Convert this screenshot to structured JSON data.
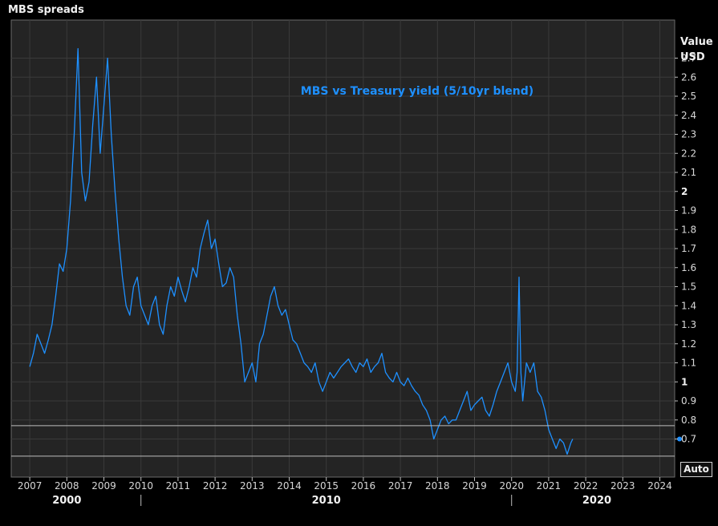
{
  "panel": {
    "title": "MBS  spreads",
    "auto_label": "Auto"
  },
  "chart_data": {
    "type": "line",
    "title": "",
    "legend": {
      "label": "MBS vs Treasury yield (5/10yr blend)",
      "placement": "top-center"
    },
    "y_axis": {
      "label_line1": "Value",
      "label_line2": "USD",
      "side": "right",
      "ylim": [
        0.5,
        2.9
      ],
      "ticks": [
        0.7,
        0.8,
        0.9,
        1,
        1.1,
        1.2,
        1.3,
        1.4,
        1.5,
        1.6,
        1.7,
        1.8,
        1.9,
        2,
        2.1,
        2.2,
        2.3,
        2.4,
        2.5,
        2.6,
        2.7
      ],
      "tick_labels": [
        "0.7",
        "0.8",
        "0.9",
        "1",
        "1.1",
        "1.2",
        "1.3",
        "1.4",
        "1.5",
        "1.6",
        "1.7",
        "1.8",
        "1.9",
        "2",
        "2.1",
        "2.2",
        "2.3",
        "2.4",
        "2.5",
        "2.6",
        "2.7"
      ],
      "bold_ticks": [
        "1",
        "2"
      ]
    },
    "x_axis": {
      "xlim": [
        2006.5,
        2024.4
      ],
      "ticks": [
        2007,
        2008,
        2009,
        2010,
        2011,
        2012,
        2013,
        2014,
        2015,
        2016,
        2017,
        2018,
        2019,
        2020,
        2021,
        2022,
        2023,
        2024
      ],
      "tick_labels": [
        "2007",
        "2008",
        "2009",
        "2010",
        "2011",
        "2012",
        "2013",
        "2014",
        "2015",
        "2016",
        "2017",
        "2018",
        "2019",
        "2020",
        "2021",
        "2022",
        "2023",
        "2024"
      ],
      "decades": [
        {
          "label": "2000",
          "x": 2008.0
        },
        {
          "label": "2010",
          "x": 2015.0
        },
        {
          "label": "2020",
          "x": 2022.3
        }
      ],
      "decade_separators": [
        2010.0,
        2020.0
      ]
    },
    "grid": true,
    "reference_lines": [
      0.77,
      0.61
    ],
    "last_value": 0.7,
    "series": [
      {
        "color": "#1e90ff",
        "x": [
          2007.0,
          2007.1,
          2007.2,
          2007.3,
          2007.4,
          2007.5,
          2007.6,
          2007.7,
          2007.8,
          2007.9,
          2008.0,
          2008.1,
          2008.2,
          2008.3,
          2008.4,
          2008.5,
          2008.6,
          2008.7,
          2008.8,
          2008.9,
          2009.0,
          2009.1,
          2009.2,
          2009.3,
          2009.4,
          2009.5,
          2009.6,
          2009.7,
          2009.8,
          2009.9,
          2010.0,
          2010.1,
          2010.2,
          2010.3,
          2010.4,
          2010.5,
          2010.6,
          2010.7,
          2010.8,
          2010.9,
          2011.0,
          2011.1,
          2011.2,
          2011.3,
          2011.4,
          2011.5,
          2011.6,
          2011.7,
          2011.8,
          2011.9,
          2012.0,
          2012.1,
          2012.2,
          2012.3,
          2012.4,
          2012.5,
          2012.6,
          2012.7,
          2012.8,
          2012.9,
          2013.0,
          2013.1,
          2013.2,
          2013.3,
          2013.4,
          2013.5,
          2013.6,
          2013.7,
          2013.8,
          2013.9,
          2014.0,
          2014.1,
          2014.2,
          2014.3,
          2014.4,
          2014.5,
          2014.6,
          2014.7,
          2014.8,
          2014.9,
          2015.0,
          2015.1,
          2015.2,
          2015.3,
          2015.4,
          2015.5,
          2015.6,
          2015.7,
          2015.8,
          2015.9,
          2016.0,
          2016.1,
          2016.2,
          2016.3,
          2016.4,
          2016.5,
          2016.6,
          2016.7,
          2016.8,
          2016.9,
          2017.0,
          2017.1,
          2017.2,
          2017.3,
          2017.4,
          2017.5,
          2017.6,
          2017.7,
          2017.8,
          2017.9,
          2018.0,
          2018.1,
          2018.2,
          2018.3,
          2018.4,
          2018.5,
          2018.6,
          2018.7,
          2018.8,
          2018.9,
          2019.0,
          2019.1,
          2019.2,
          2019.3,
          2019.4,
          2019.5,
          2019.6,
          2019.7,
          2019.8,
          2019.9,
          2020.0,
          2020.1,
          2020.15,
          2020.2,
          2020.25,
          2020.3,
          2020.4,
          2020.5,
          2020.6,
          2020.7,
          2020.8,
          2020.9,
          2021.0,
          2021.1,
          2021.2,
          2021.3,
          2021.4,
          2021.5,
          2021.6,
          2021.65
        ],
        "y": [
          1.08,
          1.15,
          1.25,
          1.2,
          1.15,
          1.22,
          1.3,
          1.45,
          1.62,
          1.58,
          1.7,
          1.95,
          2.3,
          2.75,
          2.1,
          1.95,
          2.05,
          2.35,
          2.6,
          2.2,
          2.45,
          2.7,
          2.3,
          2.0,
          1.75,
          1.55,
          1.4,
          1.35,
          1.5,
          1.55,
          1.4,
          1.35,
          1.3,
          1.4,
          1.45,
          1.3,
          1.25,
          1.4,
          1.5,
          1.45,
          1.55,
          1.48,
          1.42,
          1.5,
          1.6,
          1.55,
          1.7,
          1.78,
          1.85,
          1.7,
          1.75,
          1.62,
          1.5,
          1.52,
          1.6,
          1.55,
          1.35,
          1.2,
          1.0,
          1.05,
          1.1,
          1.0,
          1.2,
          1.25,
          1.35,
          1.45,
          1.5,
          1.4,
          1.35,
          1.38,
          1.3,
          1.22,
          1.2,
          1.15,
          1.1,
          1.08,
          1.05,
          1.1,
          1.0,
          0.95,
          1.0,
          1.05,
          1.02,
          1.05,
          1.08,
          1.1,
          1.12,
          1.08,
          1.05,
          1.1,
          1.08,
          1.12,
          1.05,
          1.08,
          1.1,
          1.15,
          1.05,
          1.02,
          1.0,
          1.05,
          1.0,
          0.98,
          1.02,
          0.98,
          0.95,
          0.93,
          0.88,
          0.85,
          0.8,
          0.7,
          0.75,
          0.8,
          0.82,
          0.78,
          0.8,
          0.8,
          0.85,
          0.9,
          0.95,
          0.85,
          0.88,
          0.9,
          0.92,
          0.85,
          0.82,
          0.88,
          0.95,
          1.0,
          1.05,
          1.1,
          1.0,
          0.95,
          1.05,
          1.55,
          1.05,
          0.9,
          1.1,
          1.05,
          1.1,
          0.95,
          0.92,
          0.85,
          0.75,
          0.7,
          0.65,
          0.7,
          0.68,
          0.62,
          0.68,
          0.7
        ]
      }
    ]
  }
}
